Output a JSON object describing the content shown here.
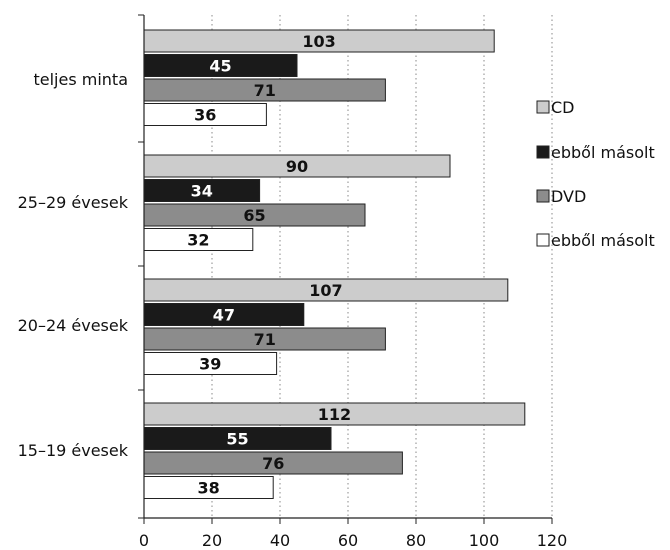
{
  "chart_data": {
    "type": "bar",
    "orientation": "horizontal",
    "categories": [
      "teljes minta",
      "25–29 évesek",
      "20–24 évesek",
      "15–19 évesek"
    ],
    "series": [
      {
        "name": "CD",
        "values": [
          103,
          90,
          107,
          112
        ],
        "color": "#cccccc"
      },
      {
        "name": "ebből másolt",
        "values": [
          45,
          34,
          47,
          55
        ],
        "color": "#1a1a1a"
      },
      {
        "name": "DVD",
        "values": [
          71,
          65,
          71,
          76
        ],
        "color": "#8c8c8c"
      },
      {
        "name": "ebből másolt",
        "values": [
          36,
          32,
          39,
          38
        ],
        "color": "#ffffff"
      }
    ],
    "xlim": [
      0,
      120
    ],
    "x_ticks": [
      "0",
      "20",
      "40",
      "60",
      "80",
      "100",
      "120"
    ],
    "grid": "vertical dotted",
    "legend_position": "right",
    "title": "",
    "xlabel": "",
    "ylabel": ""
  }
}
